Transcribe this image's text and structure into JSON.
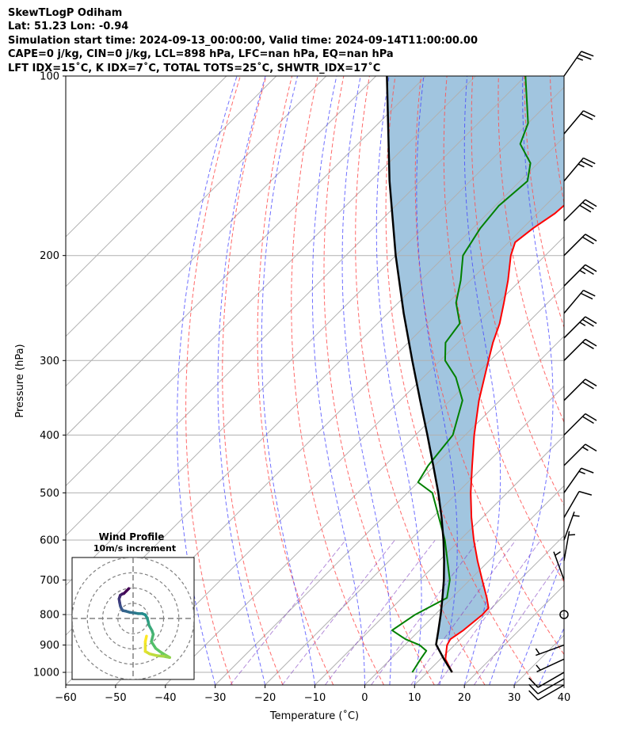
{
  "header": {
    "title": "SkewTLogP Odiham",
    "location": "Lat: 51.23   Lon: -0.94",
    "times": "Simulation start time: 2024-09-13_00:00:00, Valid time: 2024-09-14T11:00:00.00",
    "params1": "CAPE=0 j/kg, CIN=0 j/kg, LCL=898 hPa, LFC=nan hPa, EQ=nan hPa",
    "params2": "LFT IDX=15˚C, K IDX=7˚C, TOTAL TOTS=25˚C, SHWTR_IDX=17˚C"
  },
  "chart_data": {
    "type": "line",
    "xlabel": "Temperature (˚C)",
    "ylabel": "Pressure (hPa)",
    "xlim": [
      -60,
      40
    ],
    "ylim": [
      1050,
      100
    ],
    "y_scale": "log",
    "x_ticks": [
      "−60",
      "−50",
      "−40",
      "−30",
      "−20",
      "−10",
      "0",
      "10",
      "20",
      "30",
      "40"
    ],
    "y_ticks": [
      "100",
      "200",
      "300",
      "400",
      "500",
      "600",
      "700",
      "800",
      "900",
      "1000"
    ],
    "grid": true,
    "skew": "45",
    "series": [
      {
        "key": "temperature",
        "color": "#ff0000",
        "points": [
          [
            1000,
            15.0
          ],
          [
            950,
            11.0
          ],
          [
            900,
            8.5
          ],
          [
            880,
            8.0
          ],
          [
            850,
            8.8
          ],
          [
            800,
            9.5
          ],
          [
            780,
            9.4
          ],
          [
            750,
            7.0
          ],
          [
            700,
            2.5
          ],
          [
            650,
            -2.3
          ],
          [
            600,
            -7.2
          ],
          [
            550,
            -12.2
          ],
          [
            500,
            -17.3
          ],
          [
            450,
            -22.5
          ],
          [
            400,
            -28.2
          ],
          [
            350,
            -34.2
          ],
          [
            300,
            -40.3
          ],
          [
            280,
            -43.0
          ],
          [
            260,
            -45.5
          ],
          [
            240,
            -48.8
          ],
          [
            220,
            -52.5
          ],
          [
            200,
            -56.9
          ],
          [
            190,
            -58.7
          ],
          [
            180,
            -57.9
          ],
          [
            170,
            -56.5
          ],
          [
            150,
            -55.6
          ],
          [
            130,
            -55.6
          ],
          [
            120,
            -56.1
          ],
          [
            110,
            -56.6
          ],
          [
            100,
            -57.9
          ]
        ]
      },
      {
        "key": "dewpoint",
        "color": "#008000",
        "points": [
          [
            1000,
            7.0
          ],
          [
            950,
            6.0
          ],
          [
            920,
            5.5
          ],
          [
            900,
            3.0
          ],
          [
            880,
            -1.0
          ],
          [
            850,
            -5.5
          ],
          [
            800,
            -4.0
          ],
          [
            750,
            -1.0
          ],
          [
            700,
            -4.0
          ],
          [
            600,
            -13.0
          ],
          [
            500,
            -25.0
          ],
          [
            480,
            -30.0
          ],
          [
            450,
            -31.3
          ],
          [
            400,
            -32.5
          ],
          [
            350,
            -37.5
          ],
          [
            320,
            -43.5
          ],
          [
            300,
            -49.0
          ],
          [
            280,
            -52.5
          ],
          [
            260,
            -53.5
          ],
          [
            240,
            -58.4
          ],
          [
            220,
            -62.0
          ],
          [
            200,
            -66.5
          ],
          [
            180,
            -68.5
          ],
          [
            165,
            -69.3
          ],
          [
            150,
            -68.5
          ],
          [
            140,
            -71.5
          ],
          [
            130,
            -77.4
          ],
          [
            120,
            -80.0
          ],
          [
            100,
            -90.0
          ]
        ]
      },
      {
        "key": "parcel",
        "color": "#000000",
        "points": [
          [
            1000,
            15.0
          ],
          [
            950,
            10.7
          ],
          [
            898,
            6.2
          ],
          [
            850,
            3.8
          ],
          [
            800,
            1.1
          ],
          [
            750,
            -1.9
          ],
          [
            700,
            -5.2
          ],
          [
            650,
            -9.0
          ],
          [
            600,
            -13.3
          ],
          [
            550,
            -18.2
          ],
          [
            500,
            -23.8
          ],
          [
            450,
            -30.3
          ],
          [
            400,
            -37.6
          ],
          [
            350,
            -46.0
          ],
          [
            300,
            -55.6
          ],
          [
            250,
            -66.8
          ],
          [
            200,
            -80.0
          ],
          [
            150,
            -96.2
          ],
          [
            100,
            -117.8
          ]
        ]
      }
    ],
    "wind_barbs": [
      [
        100,
        35,
        25
      ],
      [
        125,
        40,
        20
      ],
      [
        150,
        40,
        25
      ],
      [
        175,
        45,
        30
      ],
      [
        200,
        45,
        20
      ],
      [
        225,
        45,
        25
      ],
      [
        250,
        40,
        20
      ],
      [
        275,
        45,
        25
      ],
      [
        300,
        45,
        20
      ],
      [
        350,
        45,
        20
      ],
      [
        400,
        45,
        20
      ],
      [
        450,
        45,
        15
      ],
      [
        500,
        35,
        15
      ],
      [
        550,
        30,
        10
      ],
      [
        600,
        20,
        5
      ],
      [
        650,
        10,
        5
      ],
      [
        700,
        340,
        5
      ],
      [
        800,
        0,
        0
      ],
      [
        900,
        250,
        5
      ],
      [
        950,
        245,
        5
      ],
      [
        1000,
        240,
        10
      ],
      [
        1025,
        240,
        10
      ],
      [
        1050,
        240,
        10
      ]
    ],
    "hodograph": {
      "title": "Wind Profile",
      "subtitle": "10m/s increment",
      "points": [
        [
          -0.7,
          4.9
        ],
        [
          -1.5,
          4.1
        ],
        [
          -1.8,
          4.0
        ],
        [
          -2.1,
          3.8
        ],
        [
          -2.2,
          3.5
        ],
        [
          -2.3,
          3.2
        ],
        [
          -2.2,
          2.6
        ],
        [
          -2.1,
          2.1
        ],
        [
          -2.0,
          1.8
        ],
        [
          -1.7,
          1.3
        ],
        [
          -1.2,
          1.2
        ],
        [
          -0.5,
          1.0
        ],
        [
          0.3,
          0.9
        ],
        [
          0.8,
          0.8
        ],
        [
          1.5,
          0.8
        ],
        [
          2.0,
          0.6
        ],
        [
          2.3,
          0.1
        ],
        [
          2.5,
          -0.6
        ],
        [
          2.6,
          -1.1
        ],
        [
          3.1,
          -2.0
        ],
        [
          3.3,
          -2.6
        ],
        [
          3.0,
          -3.8
        ],
        [
          3.7,
          -4.9
        ],
        [
          4.5,
          -5.5
        ],
        [
          5.3,
          -6.0
        ],
        [
          6.0,
          -6.4
        ],
        [
          5.0,
          -6.2
        ],
        [
          3.9,
          -6.1
        ],
        [
          2.7,
          -5.8
        ],
        [
          2.0,
          -5.4
        ],
        [
          2.0,
          -3.8
        ],
        [
          2.2,
          -2.9
        ]
      ]
    }
  }
}
